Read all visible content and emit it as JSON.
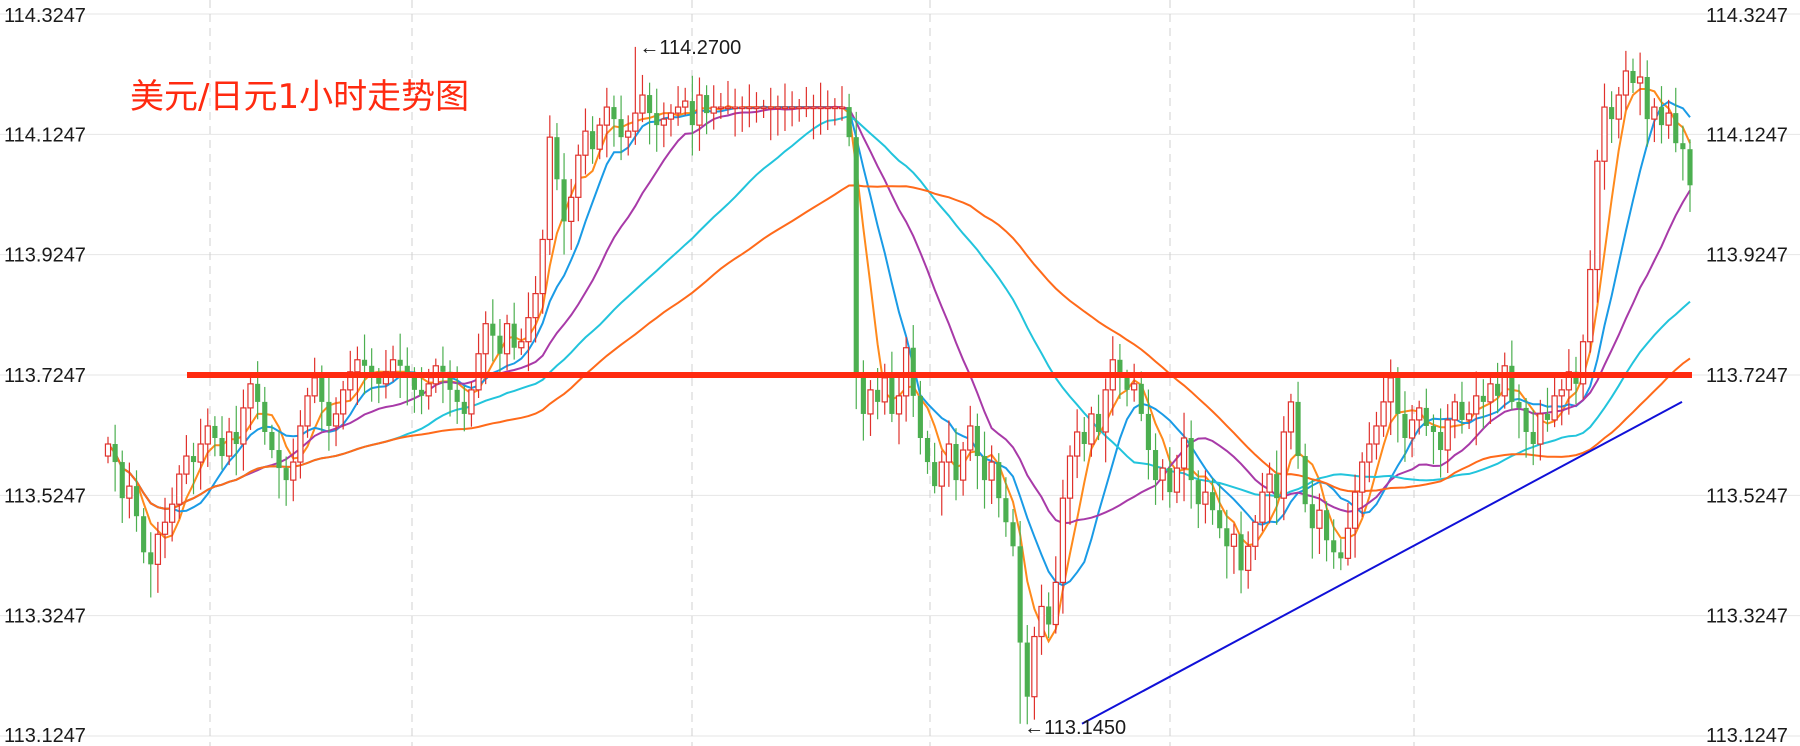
{
  "chart_data": {
    "type": "candlestick",
    "title": "美元/日元1小时走势图",
    "ylim": [
      113.1247,
      114.3247
    ],
    "y_ticks": [
      "114.3247",
      "114.1247",
      "113.9247",
      "113.7247",
      "113.5247",
      "113.3247",
      "113.1247"
    ],
    "y_axis_sides": [
      "left",
      "right"
    ],
    "grid": {
      "horizontal": true,
      "vertical_dashed": true
    },
    "annotations": [
      {
        "text": "←114.2700",
        "value": 114.27
      },
      {
        "text": "←113.1450",
        "value": 113.145
      }
    ],
    "overlays": [
      {
        "kind": "horizontal_line",
        "color": "#ff2a10",
        "value": 113.7247
      },
      {
        "kind": "trend_line",
        "color": "#1010d8",
        "from": 113.145,
        "to": 113.68
      }
    ],
    "colors": {
      "up": "#e0312c",
      "down": "#4caf50",
      "ma_fast": "#ff8a1c",
      "ma_mid": "#1a9be6",
      "ma_slow": "#a83aa8",
      "ma_long1": "#22c4dc",
      "ma_long2": "#ff6a1a"
    },
    "closes": [
      113.61,
      113.58,
      113.52,
      113.54,
      113.49,
      113.43,
      113.41,
      113.46,
      113.48,
      113.51,
      113.56,
      113.59,
      113.58,
      113.61,
      113.64,
      113.62,
      113.59,
      113.63,
      113.61,
      113.67,
      113.71,
      113.68,
      113.63,
      113.6,
      113.57,
      113.55,
      113.58,
      113.64,
      113.69,
      113.72,
      113.68,
      113.64,
      113.66,
      113.7,
      113.73,
      113.75,
      113.74,
      113.72,
      113.71,
      113.73,
      113.75,
      113.74,
      113.72,
      113.7,
      113.69,
      113.71,
      113.74,
      113.73,
      113.7,
      113.68,
      113.66,
      113.7,
      113.76,
      113.81,
      113.79,
      113.76,
      113.81,
      113.77,
      113.78,
      113.82,
      113.86,
      113.95,
      114.12,
      114.05,
      113.98,
      114.02,
      114.09,
      114.13,
      114.1,
      114.14,
      114.17,
      114.15,
      114.12,
      114.13,
      114.16,
      114.19,
      114.16,
      114.14,
      114.15,
      114.16,
      114.17,
      114.18,
      114.14,
      114.19,
      114.16,
      114.17,
      114.17,
      114.17,
      114.17,
      114.17,
      114.17,
      114.17,
      114.17,
      114.17,
      114.17,
      114.17,
      114.17,
      114.17,
      114.17,
      114.17,
      114.17,
      114.17,
      114.17,
      114.17,
      114.12,
      113.72,
      113.66,
      113.7,
      113.68,
      113.72,
      113.66,
      113.69,
      113.77,
      113.69,
      113.62,
      113.58,
      113.54,
      113.58,
      113.61,
      113.55,
      113.6,
      113.64,
      113.59,
      113.55,
      113.58,
      113.52,
      113.48,
      113.44,
      113.28,
      113.19,
      113.29,
      113.34,
      113.31,
      113.38,
      113.52,
      113.59,
      113.63,
      113.61,
      113.66,
      113.63,
      113.7,
      113.75,
      113.72,
      113.7,
      113.71,
      113.66,
      113.6,
      113.55,
      113.57,
      113.53,
      113.57,
      113.62,
      113.55,
      113.51,
      113.53,
      113.5,
      113.47,
      113.44,
      113.46,
      113.4,
      113.44,
      113.48,
      113.53,
      113.56,
      113.52,
      113.63,
      113.68,
      113.59,
      113.51,
      113.47,
      113.5,
      113.45,
      113.43,
      113.42,
      113.47,
      113.53,
      113.58,
      113.61,
      113.64,
      113.68,
      113.72,
      113.66,
      113.62,
      113.65,
      113.67,
      113.64,
      113.63,
      113.6,
      113.65,
      113.68,
      113.65,
      113.66,
      113.69,
      113.68,
      113.71,
      113.69,
      113.74,
      113.68,
      113.67,
      113.63,
      113.61,
      113.66,
      113.65,
      113.69,
      113.7,
      113.73,
      113.71,
      113.78,
      113.9,
      114.08,
      114.17,
      114.15,
      114.19,
      114.23,
      114.21,
      114.22,
      114.15,
      114.17,
      114.14,
      114.16,
      114.11,
      114.1,
      114.04
    ]
  }
}
